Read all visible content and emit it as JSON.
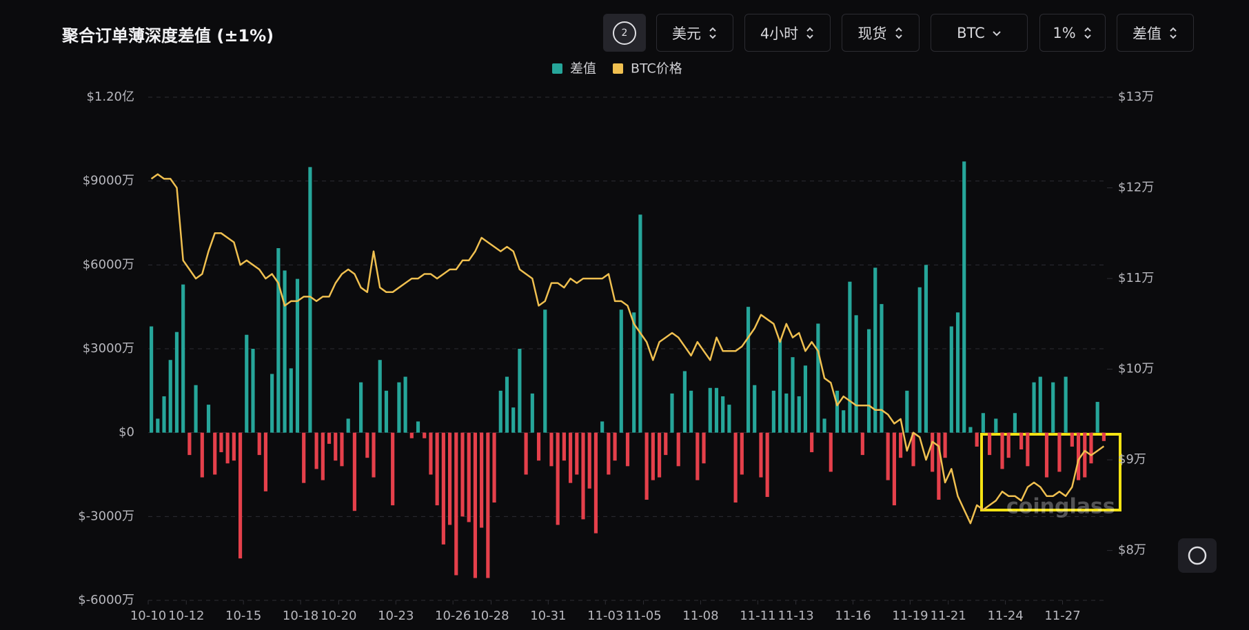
{
  "header": {
    "title": "聚合订单薄深度差值 (±1%)",
    "refresh_label": "2",
    "controls": [
      "美元",
      "4小时",
      "现货",
      "BTC",
      "1%",
      "差值"
    ]
  },
  "chart_data": {
    "type": "bar",
    "watermark": "coinglass",
    "series": [
      {
        "name": "差值",
        "color": "#26a69a",
        "negative_color": "#e5404b",
        "values": [
          3800,
          500,
          1300,
          2600,
          3600,
          5300,
          -800,
          1700,
          -1600,
          1000,
          -1500,
          -700,
          -1100,
          -1000,
          -4500,
          3500,
          3000,
          -800,
          -2100,
          2100,
          6600,
          5800,
          2300,
          5500,
          -1800,
          9500,
          -1300,
          -1700,
          -400,
          -1000,
          -1200,
          500,
          -2800,
          1800,
          -900,
          -1600,
          2600,
          1500,
          -2600,
          1800,
          2000,
          -200,
          400,
          -200,
          -1500,
          -2600,
          -4000,
          -3300,
          -5100,
          -3000,
          -3200,
          -5200,
          -3400,
          -5200,
          -2500,
          1500,
          2000,
          900,
          3000,
          -1500,
          1400,
          -1000,
          4400,
          -1200,
          -3300,
          -1000,
          -1800,
          -1500,
          -3100,
          -2000,
          -3600,
          400,
          -1500,
          -1000,
          4400,
          -1200,
          4300,
          7800,
          -2400,
          -1700,
          -1600,
          -800,
          1400,
          -1200,
          2200,
          1500,
          -1700,
          -1100,
          1600,
          1600,
          1300,
          1000,
          -2500,
          -1500,
          4500,
          1700,
          -1600,
          -2300,
          1500,
          3300,
          1400,
          2700,
          1300,
          2400,
          -700,
          3900,
          500,
          -1400,
          1500,
          800,
          5400,
          4200,
          -800,
          3700,
          5900,
          4600,
          -1700,
          -2600,
          -900,
          1500,
          -1200,
          5200,
          6000,
          -1400,
          -2400,
          -900,
          3800,
          4300,
          9700,
          200,
          -500,
          700,
          -800,
          500,
          -1300,
          -900,
          700,
          -600,
          -1200,
          1800,
          2000,
          -1600,
          1800,
          -1400,
          2000,
          -500,
          -1700,
          -1600,
          -1100,
          1100,
          -300
        ]
      },
      {
        "name": "BTC价格",
        "type": "line",
        "axis": "y2",
        "color": "#f0c050",
        "values": [
          12.1,
          12.15,
          12.1,
          12.1,
          12.0,
          11.2,
          11.1,
          11.0,
          11.05,
          11.3,
          11.5,
          11.5,
          11.45,
          11.4,
          11.15,
          11.2,
          11.15,
          11.1,
          11.0,
          11.05,
          10.95,
          10.7,
          10.75,
          10.75,
          10.8,
          10.8,
          10.75,
          10.8,
          10.8,
          10.95,
          11.05,
          11.1,
          11.05,
          10.9,
          10.85,
          11.3,
          10.9,
          10.85,
          10.85,
          10.9,
          10.95,
          11.0,
          11.0,
          11.05,
          11.05,
          11.0,
          11.05,
          11.1,
          11.1,
          11.2,
          11.2,
          11.3,
          11.45,
          11.4,
          11.35,
          11.3,
          11.35,
          11.3,
          11.1,
          11.05,
          11.0,
          10.7,
          10.75,
          10.95,
          10.95,
          10.9,
          11.0,
          10.95,
          11.0,
          11.0,
          11.0,
          11.0,
          11.05,
          10.75,
          10.75,
          10.7,
          10.5,
          10.4,
          10.3,
          10.1,
          10.3,
          10.35,
          10.4,
          10.35,
          10.25,
          10.15,
          10.3,
          10.2,
          10.1,
          10.35,
          10.2,
          10.2,
          10.2,
          10.25,
          10.35,
          10.45,
          10.6,
          10.55,
          10.5,
          10.3,
          10.5,
          10.35,
          10.4,
          10.2,
          10.3,
          10.2,
          9.9,
          9.85,
          9.6,
          9.7,
          9.65,
          9.6,
          9.6,
          9.6,
          9.55,
          9.55,
          9.5,
          9.4,
          9.45,
          9.1,
          9.3,
          9.25,
          9.0,
          9.2,
          9.15,
          8.75,
          8.9,
          8.6,
          8.45,
          8.3,
          8.5,
          8.45,
          8.5,
          8.55,
          8.65,
          8.6,
          8.6,
          8.55,
          8.7,
          8.75,
          8.7,
          8.6,
          8.6,
          8.65,
          8.6,
          8.7,
          9.0,
          9.1,
          9.05,
          9.1,
          9.15
        ]
      }
    ],
    "xlim": [
      0,
      151
    ],
    "xticks": [
      {
        "value": 0,
        "label": "10-10"
      },
      {
        "value": 6,
        "label": "10-12"
      },
      {
        "value": 15,
        "label": "10-15"
      },
      {
        "value": 24,
        "label": "10-18"
      },
      {
        "value": 30,
        "label": "10-20"
      },
      {
        "value": 39,
        "label": "10-23"
      },
      {
        "value": 48,
        "label": "10-26"
      },
      {
        "value": 54,
        "label": "10-28"
      },
      {
        "value": 63,
        "label": "10-31"
      },
      {
        "value": 72,
        "label": "11-03"
      },
      {
        "value": 78,
        "label": "11-05"
      },
      {
        "value": 87,
        "label": "11-08"
      },
      {
        "value": 96,
        "label": "11-11"
      },
      {
        "value": 102,
        "label": "11-13"
      },
      {
        "value": 111,
        "label": "11-16"
      },
      {
        "value": 120,
        "label": "11-19"
      },
      {
        "value": 126,
        "label": "11-21"
      },
      {
        "value": 135,
        "label": "11-24"
      },
      {
        "value": 144,
        "label": "11-27"
      }
    ],
    "ylim": [
      -6000,
      12000
    ],
    "yticks": [
      {
        "value": -6000,
        "label": "$-6000万"
      },
      {
        "value": -3000,
        "label": "$-3000万"
      },
      {
        "value": 0,
        "label": "$0"
      },
      {
        "value": 3000,
        "label": "$3000万"
      },
      {
        "value": 6000,
        "label": "$6000万"
      },
      {
        "value": 9000,
        "label": "$9000万"
      },
      {
        "value": 12000,
        "label": "$1.20亿"
      }
    ],
    "y2lim": [
      7.45,
      13
    ],
    "y2ticks": [
      {
        "value": 8,
        "label": "$8万"
      },
      {
        "value": 9,
        "label": "$9万"
      },
      {
        "value": 10,
        "label": "$10万"
      },
      {
        "value": 11,
        "label": "$11万"
      },
      {
        "value": 12,
        "label": "$12万"
      },
      {
        "value": 13,
        "label": "$13万"
      }
    ],
    "grid": true
  }
}
